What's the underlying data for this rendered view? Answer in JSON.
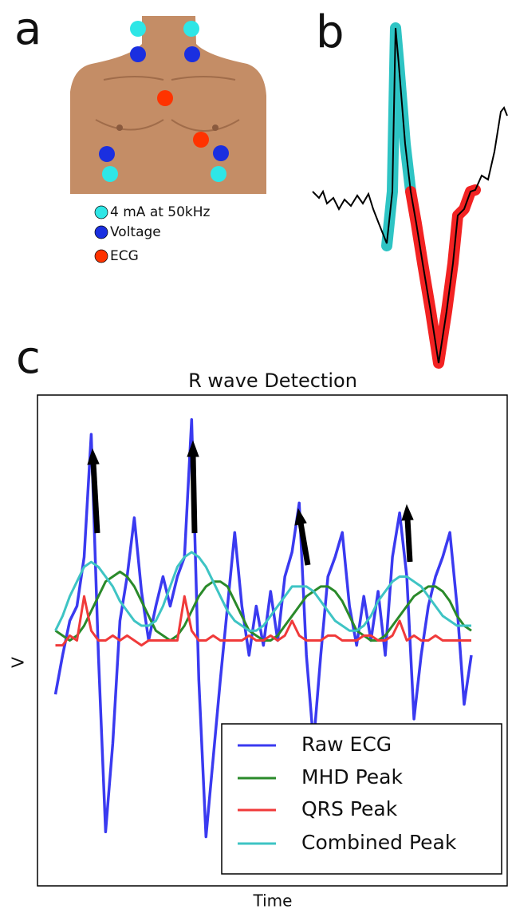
{
  "panels": {
    "a": {
      "label": "a",
      "legend": [
        "4 mA at 50kHz",
        "Voltage",
        "ECG"
      ]
    },
    "b": {
      "label": "b"
    },
    "c": {
      "label": "c"
    }
  },
  "chart_data": {
    "type": "line",
    "title": "R wave Detection",
    "xlabel": "Time",
    "ylabel": "V",
    "x": [
      0,
      1,
      2,
      3,
      4,
      5,
      6,
      7,
      8,
      9,
      10,
      11,
      12,
      13,
      14,
      15,
      16,
      17,
      18,
      19,
      20,
      21,
      22,
      23,
      24,
      25,
      26,
      27,
      28,
      29,
      30,
      31,
      32,
      33,
      34,
      35,
      36,
      37,
      38,
      39,
      40,
      41,
      42,
      43,
      44,
      45,
      46,
      47,
      48,
      49,
      50,
      51,
      52,
      53,
      54,
      55,
      56,
      57,
      58
    ],
    "xlim": [
      -2.5,
      63
    ],
    "ylim": [
      0,
      100
    ],
    "legend": "lower right",
    "series": [
      {
        "name": "Raw ECG",
        "color": "#3a3af0",
        "values": [
          39,
          47,
          54,
          57,
          67,
          92,
          47,
          11,
          29,
          54,
          63,
          75,
          60,
          50,
          57,
          63,
          57,
          63,
          67,
          95,
          42,
          10,
          26,
          42,
          57,
          72,
          57,
          47,
          57,
          49,
          60,
          50,
          63,
          68,
          78,
          47,
          29,
          47,
          63,
          67,
          72,
          57,
          49,
          59,
          50,
          60,
          47,
          67,
          76,
          63,
          34,
          47,
          57,
          63,
          67,
          72,
          57,
          37,
          47
        ]
      },
      {
        "name": "MHD Peak",
        "color": "#2a8a2a",
        "values": [
          52,
          51,
          50,
          51,
          53,
          56,
          59,
          62,
          63,
          64,
          63,
          61,
          58,
          55,
          52,
          51,
          50,
          51,
          53,
          56,
          59,
          61,
          62,
          62,
          61,
          58,
          55,
          52,
          51,
          50,
          50,
          51,
          53,
          55,
          57,
          59,
          60,
          61,
          61,
          60,
          58,
          55,
          52,
          51,
          50,
          50,
          51,
          53,
          55,
          57,
          59,
          60,
          61,
          61,
          60,
          58,
          55,
          53,
          52
        ]
      },
      {
        "name": "QRS Peak",
        "color": "#f03a3a",
        "values": [
          49,
          49,
          51,
          50,
          59,
          52,
          50,
          50,
          51,
          50,
          51,
          50,
          49,
          50,
          50,
          50,
          50,
          50,
          59,
          52,
          50,
          50,
          51,
          50,
          50,
          50,
          50,
          51,
          50,
          50,
          51,
          50,
          51,
          54,
          51,
          50,
          50,
          50,
          51,
          51,
          50,
          50,
          50,
          51,
          51,
          50,
          50,
          51,
          54,
          50,
          51,
          50,
          50,
          51,
          50,
          50,
          50,
          50,
          50
        ]
      },
      {
        "name": "Combined Peak",
        "color": "#3ec4c4",
        "values": [
          52,
          55,
          59,
          62,
          65,
          66,
          65,
          63,
          61,
          58,
          56,
          54,
          53,
          53,
          54,
          57,
          61,
          65,
          67,
          68,
          67,
          65,
          62,
          59,
          56,
          54,
          53,
          52,
          52,
          53,
          55,
          57,
          59,
          61,
          61,
          61,
          60,
          58,
          56,
          54,
          53,
          52,
          52,
          53,
          55,
          58,
          60,
          62,
          63,
          63,
          62,
          61,
          59,
          57,
          55,
          54,
          53,
          53,
          53
        ]
      }
    ]
  }
}
